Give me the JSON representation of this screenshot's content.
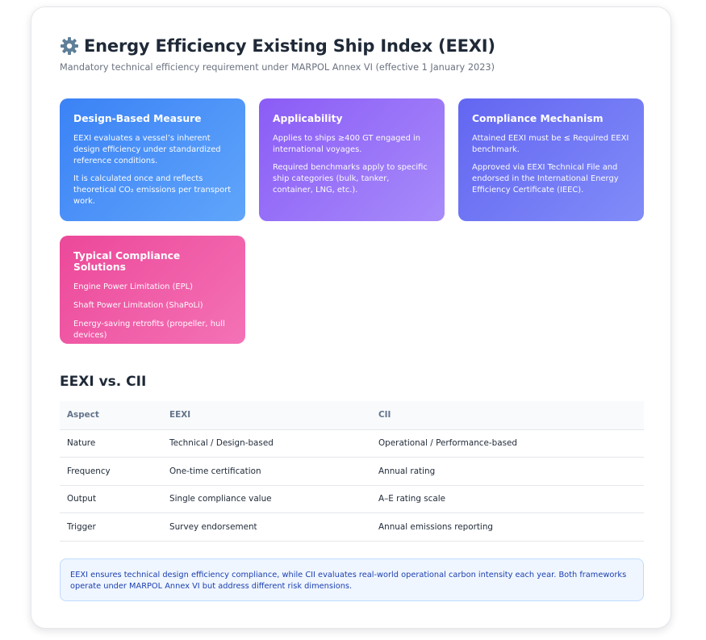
{
  "header": {
    "title": "Energy Efficiency Existing Ship Index (EEXI)",
    "subtitle": "Mandatory technical efficiency requirement under MARPOL Annex VI (effective 1 January 2023)"
  },
  "cards": {
    "design": {
      "title": "Design-Based Measure",
      "p1": "EEXI evaluates a vessel’s inherent design efficiency under standardized reference conditions.",
      "p2": "It is calculated once and reflects theoretical CO₂ emissions per transport work."
    },
    "applicability": {
      "title": "Applicability",
      "p1": "Applies to ships ≥400 GT engaged in international voyages.",
      "p2": "Required benchmarks apply to specific ship categories (bulk, tanker, container, LNG, etc.)."
    },
    "compliance": {
      "title": "Compliance Mechanism",
      "p1": "Attained EEXI must be ≤ Required EEXI benchmark.",
      "p2": "Approved via EEXI Technical File and endorsed in the International Energy Efficiency Certificate (IEEC)."
    },
    "solutions": {
      "title": "Typical Compliance Solutions",
      "items": [
        "Engine Power Limitation (EPL)",
        "Shaft Power Limitation (ShaPoLi)",
        "Energy-saving retrofits (propeller, hull devices)"
      ]
    }
  },
  "comparison": {
    "title": "EEXI vs. CII",
    "headers": [
      "Aspect",
      "EEXI",
      "CII"
    ],
    "rows": [
      [
        "Nature",
        "Technical / Design-based",
        "Operational / Performance-based"
      ],
      [
        "Frequency",
        "One-time certification",
        "Annual rating"
      ],
      [
        "Output",
        "Single compliance value",
        "A–E rating scale"
      ],
      [
        "Trigger",
        "Survey endorsement",
        "Annual emissions reporting"
      ]
    ]
  },
  "note": "EEXI ensures technical design efficiency compliance, while CII evaluates real-world operational carbon intensity each year. Both frameworks operate under MARPOL Annex VI but address different risk dimensions.",
  "icons": {
    "title_icon": "gear-icon"
  },
  "colors": {
    "card_blue": "#3b82f6",
    "card_purple": "#8b5cf6",
    "card_indigo": "#6366f1",
    "card_pink": "#ec4899",
    "note_bg": "#eff6ff",
    "note_text": "#1e40af"
  }
}
